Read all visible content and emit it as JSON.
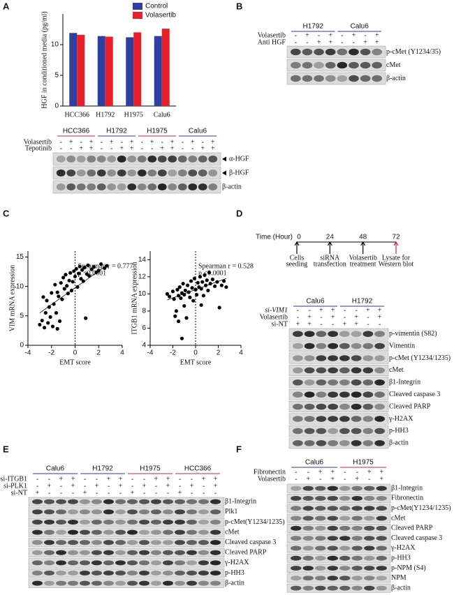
{
  "panel_labels": [
    "A",
    "B",
    "C",
    "D",
    "E",
    "F"
  ],
  "chart_data": [
    {
      "type": "bar",
      "y_label": "HGF in conditioned media (pg/ml)",
      "categories": [
        "HCC366",
        "H1792",
        "H1975",
        "Calu6"
      ],
      "category_colors": [
        "#c0282d",
        "#2b3990",
        "#c0282d",
        "#2b3990"
      ],
      "series": [
        {
          "name": "Control",
          "color": "#2e3f9e",
          "values": [
            11.9,
            11.4,
            11.2,
            11.4
          ]
        },
        {
          "name": "Volasertib",
          "color": "#e8202a",
          "values": [
            11.6,
            11.3,
            12.0,
            12.6
          ]
        }
      ],
      "ylim": [
        0,
        15
      ],
      "yticks": [
        0,
        5,
        10
      ],
      "legend": "top-right"
    },
    {
      "type": "scatter",
      "x_label": "EMT score",
      "y_label": "VIM mRNA expression",
      "annotations": [
        "Spearman r = 0.777",
        "p <0.0001"
      ],
      "x": [
        -3.0,
        -2.8,
        -2.6,
        -2.5,
        -2.4,
        -2.3,
        -2.2,
        -2.1,
        -2.0,
        -1.9,
        -1.8,
        -1.7,
        -1.6,
        -1.5,
        -1.4,
        -1.3,
        -1.2,
        -1.1,
        -1.0,
        -0.9,
        -0.8,
        -0.7,
        -0.6,
        -0.5,
        -0.4,
        -0.3,
        -0.2,
        -0.1,
        0.0,
        0.1,
        0.2,
        0.3,
        0.4,
        0.5,
        0.6,
        0.7,
        0.8,
        0.9,
        1.0,
        1.1,
        1.2,
        1.4,
        1.6,
        1.8,
        2.0,
        2.2,
        2.5,
        2.7,
        -2.7,
        -1.5
      ],
      "values": [
        3.5,
        4.2,
        3.0,
        5.5,
        7.6,
        3.8,
        6.5,
        4.8,
        8.9,
        3.2,
        7.0,
        10.3,
        5.5,
        9.0,
        8.3,
        4.1,
        10.6,
        7.8,
        11.5,
        9.6,
        12.0,
        10.1,
        8.8,
        11.0,
        12.3,
        9.3,
        10.8,
        12.6,
        11.7,
        13.0,
        9.9,
        12.2,
        13.4,
        11.3,
        12.8,
        10.9,
        13.2,
        4.6,
        12.1,
        13.6,
        11.8,
        12.9,
        13.3,
        12.4,
        12.7,
        13.8,
        13.1,
        13.5,
        8.2,
        2.8
      ],
      "fit_line": {
        "x": [
          -3,
          2.7
        ],
        "y": [
          5.5,
          13.6
        ]
      },
      "color": "#000000",
      "xlim": [
        -4,
        4
      ],
      "xticks": [
        -4,
        -2,
        0,
        2,
        4
      ],
      "ylim": [
        0,
        16
      ],
      "yticks": [
        0,
        5,
        10,
        15
      ]
    },
    {
      "type": "scatter",
      "x_label": "EMT score",
      "y_label": "ITGB1 mRNA expression",
      "annotations": [
        "Spearman r = 0.528",
        "p <0.0001"
      ],
      "x": [
        -2.5,
        -2.3,
        -2.0,
        -1.9,
        -1.8,
        -1.7,
        -1.6,
        -1.5,
        -1.5,
        -1.4,
        -1.3,
        -1.2,
        -1.2,
        -1.1,
        -1.0,
        -0.9,
        -0.8,
        -0.7,
        -0.6,
        -0.5,
        -0.4,
        -0.3,
        -0.2,
        -0.1,
        0.0,
        0.1,
        0.2,
        0.3,
        0.4,
        0.5,
        0.6,
        0.7,
        0.8,
        0.9,
        1.0,
        1.1,
        1.2,
        1.3,
        1.5,
        1.7,
        1.9,
        2.1,
        2.3,
        2.5,
        2.7,
        -1.0,
        0.5
      ],
      "values": [
        10.0,
        9.7,
        10.3,
        9.4,
        7.4,
        8.0,
        10.5,
        9.8,
        6.8,
        10.8,
        9.5,
        10.1,
        4.8,
        11.2,
        9.9,
        10.4,
        7.2,
        11.0,
        10.2,
        9.6,
        11.5,
        10.7,
        9.2,
        11.8,
        10.5,
        9.9,
        11.3,
        10.8,
        12.0,
        10.6,
        11.4,
        9.8,
        12.2,
        11.0,
        11.6,
        10.4,
        12.5,
        11.2,
        11.7,
        10.9,
        11.4,
        8.4,
        11.0,
        11.5,
        10.8,
        8.6,
        8.7
      ],
      "fit_line": {
        "x": [
          -2.5,
          2.7
        ],
        "y": [
          9.3,
          11.8
        ]
      },
      "color": "#000000",
      "xlim": [
        -4,
        4
      ],
      "xticks": [
        -4,
        -2,
        0,
        2,
        4
      ],
      "ylim": [
        4,
        15
      ],
      "yticks": [
        4,
        6,
        8,
        10,
        12,
        14
      ]
    }
  ],
  "timeline": {
    "axis_label": "Time (Hour)",
    "points": [
      {
        "time": 0,
        "label": [
          "Cells",
          "seeding"
        ]
      },
      {
        "time": 24,
        "label": [
          "siRNA",
          "transfection"
        ]
      },
      {
        "time": 48,
        "label": [
          "Volasertib",
          "treatment"
        ]
      },
      {
        "time": 72,
        "label": [
          "Lysate for",
          "Western blot"
        ]
      }
    ]
  },
  "blots": [
    {
      "groups": [
        {
          "label": "HCC366",
          "color": "#c0282d"
        },
        {
          "label": "H1792",
          "color": "#2b3990"
        },
        {
          "label": "H1975",
          "color": "#c0282d"
        },
        {
          "label": "Calu6",
          "color": "#2b3990"
        }
      ],
      "treatments": [
        {
          "label": "Volasertib",
          "signs": [
            "-",
            "+",
            "-",
            "+",
            "-",
            "+",
            "-",
            "+",
            "-",
            "+",
            "-",
            "+",
            "-",
            "+",
            "-",
            "+"
          ]
        },
        {
          "label": "Tepotinib",
          "signs": [
            "-",
            "-",
            "+",
            "+",
            "-",
            "-",
            "+",
            "+",
            "-",
            "-",
            "+",
            "+",
            "-",
            "-",
            "+",
            "+"
          ]
        }
      ],
      "rows": [
        "α-HGF",
        "β-HGF",
        "β-actin"
      ]
    },
    {
      "groups": [
        {
          "label": "H1792",
          "color": "#2b3990"
        },
        {
          "label": "Calu6",
          "color": "#2b3990"
        }
      ],
      "treatments": [
        {
          "label": "Volasertib",
          "signs": [
            "-",
            "+",
            "-",
            "+",
            "-",
            "+",
            "-",
            "+"
          ]
        },
        {
          "label": "Anti HGF",
          "signs": [
            "-",
            "-",
            "+",
            "+",
            "-",
            "-",
            "+",
            "+"
          ]
        }
      ],
      "rows": [
        "p-cMet (Y1234/35)",
        "cMet",
        "β-actin"
      ]
    },
    {
      "groups": [
        {
          "label": "Calu6",
          "color": "#2b3990"
        },
        {
          "label": "H1792",
          "color": "#2b3990"
        }
      ],
      "treatments": [
        {
          "label": "si-VIM1",
          "signs": [
            "-",
            "-",
            "+",
            "+",
            "-",
            "-",
            "+",
            "+"
          ]
        },
        {
          "label": "Volasertib",
          "signs": [
            "-",
            "+",
            "-",
            "+",
            "-",
            "+",
            "-",
            "+"
          ]
        },
        {
          "label": "si-NT",
          "signs": [
            "+",
            "+",
            "-",
            "-",
            "+",
            "+",
            "-",
            "-"
          ]
        }
      ],
      "rows": [
        "p-vimentin (S82)",
        "Vimentin",
        "p-cMet (Y1234/1235)",
        "cMet",
        "β1-Integrin",
        "Cleaved caspase 3",
        "Cleaved PARP",
        "γ-H2AX",
        "p-HH3",
        "β-actin"
      ]
    },
    {
      "groups": [
        {
          "label": "Calu6",
          "color": "#2b3990"
        },
        {
          "label": "H1792",
          "color": "#2b3990"
        },
        {
          "label": "H1975",
          "color": "#c0282d"
        },
        {
          "label": "HCC366",
          "color": "#c0282d"
        }
      ],
      "treatments": [
        {
          "label": "si-ITGB1",
          "signs": [
            "-",
            "-",
            "+",
            "+",
            "-",
            "-",
            "+",
            "+",
            "-",
            "-",
            "+",
            "+",
            "-",
            "-",
            "+",
            "+"
          ]
        },
        {
          "label": "si-PLK1",
          "signs": [
            "-",
            "+",
            "-",
            "+",
            "-",
            "+",
            "-",
            "+",
            "-",
            "+",
            "-",
            "+",
            "-",
            "+",
            "-",
            "+"
          ]
        },
        {
          "label": "si-NT",
          "signs": [
            "+",
            "-",
            "-",
            "-",
            "+",
            "-",
            "-",
            "-",
            "+",
            "-",
            "-",
            "-",
            "+",
            "-",
            "-",
            "-"
          ]
        }
      ],
      "rows": [
        "β1-Integrin",
        "Plk1",
        "p-cMet(Y1234/1235)",
        "cMet",
        "Cleaved caspase 3",
        "Cleaved PARP",
        "γ-H2AX",
        "p-HH3",
        "β-actin"
      ]
    },
    {
      "groups": [
        {
          "label": "Calu6",
          "color": "#2b3990"
        },
        {
          "label": "H1975",
          "color": "#c0282d"
        }
      ],
      "treatments": [
        {
          "label": "Fibronectin",
          "signs": [
            "-",
            "-",
            "+",
            "+",
            "-",
            "-",
            "+",
            "+"
          ]
        },
        {
          "label": "Volasertib",
          "signs": [
            "-",
            "+",
            "-",
            "+",
            "-",
            "+",
            "-",
            "+"
          ]
        }
      ],
      "rows": [
        "β1-Integrin",
        "Fibronectin",
        "p-cMet(Y1234/1235)",
        "cMet",
        "Cleaved PARP",
        "Cleaved caspase 3",
        "γ-H2AX",
        "p-HH3",
        "p-NPM (S4)",
        "NPM",
        "β-actin"
      ]
    }
  ]
}
